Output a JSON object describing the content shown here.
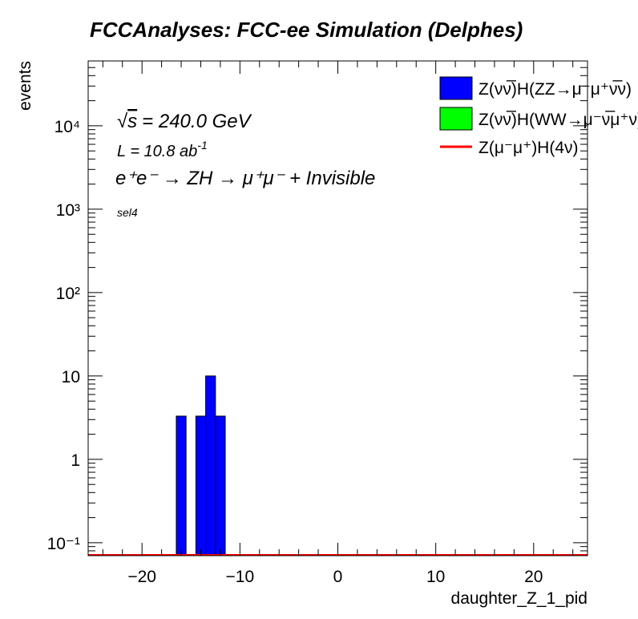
{
  "chart_data": {
    "type": "bar",
    "title": "FCCAnalyses: FCC-ee Simulation (Delphes)",
    "xlabel": "daughter_Z_1_pid",
    "ylabel": "events",
    "xlim": [
      -25.5,
      25.5
    ],
    "ylim": [
      0.07,
      60000
    ],
    "y_log_scale": true,
    "grid": false,
    "legend_position": "top-right",
    "x_ticks": [
      "−20",
      "−10",
      "0",
      "10",
      "20"
    ],
    "x_tick_values": [
      -20,
      -10,
      0,
      10,
      20
    ],
    "y_ticks": [
      "10⁻¹",
      "1",
      "10",
      "10²",
      "10³",
      "10⁴"
    ],
    "y_tick_values": [
      0.1,
      1,
      10,
      100,
      1000,
      10000
    ],
    "annotations": {
      "sqrt_s": "= 240.0 GeV",
      "sqrt_symbol": "√",
      "sqrt_var": "s",
      "lumi": "L = 10.8 ab",
      "lumi_exp": "-1",
      "process": "e⁺e⁻ → ZH → μ⁺μ⁻ + Invisible",
      "selection": "sel4"
    },
    "series": [
      {
        "name": "Z(νν̅)H(ZZ→μ⁻μ⁺ν̅ν)",
        "color": "#0000ff",
        "style": "filled-histogram",
        "bins": [
          {
            "x0": -16.5,
            "x1": -15.5,
            "y": 3.3
          },
          {
            "x0": -14.5,
            "x1": -13.5,
            "y": 3.3
          },
          {
            "x0": -13.5,
            "x1": -12.5,
            "y": 10
          },
          {
            "x0": -12.5,
            "x1": -11.5,
            "y": 3.3
          }
        ]
      },
      {
        "name": "Z(νν̅)H(WW→μ⁻ν̅μ⁺ν)",
        "color": "#00ff00",
        "style": "filled-histogram",
        "bins": []
      },
      {
        "name": "Z(μ⁻μ⁺)H(4ν)",
        "color": "#ff0000",
        "style": "line",
        "bins": []
      }
    ]
  }
}
